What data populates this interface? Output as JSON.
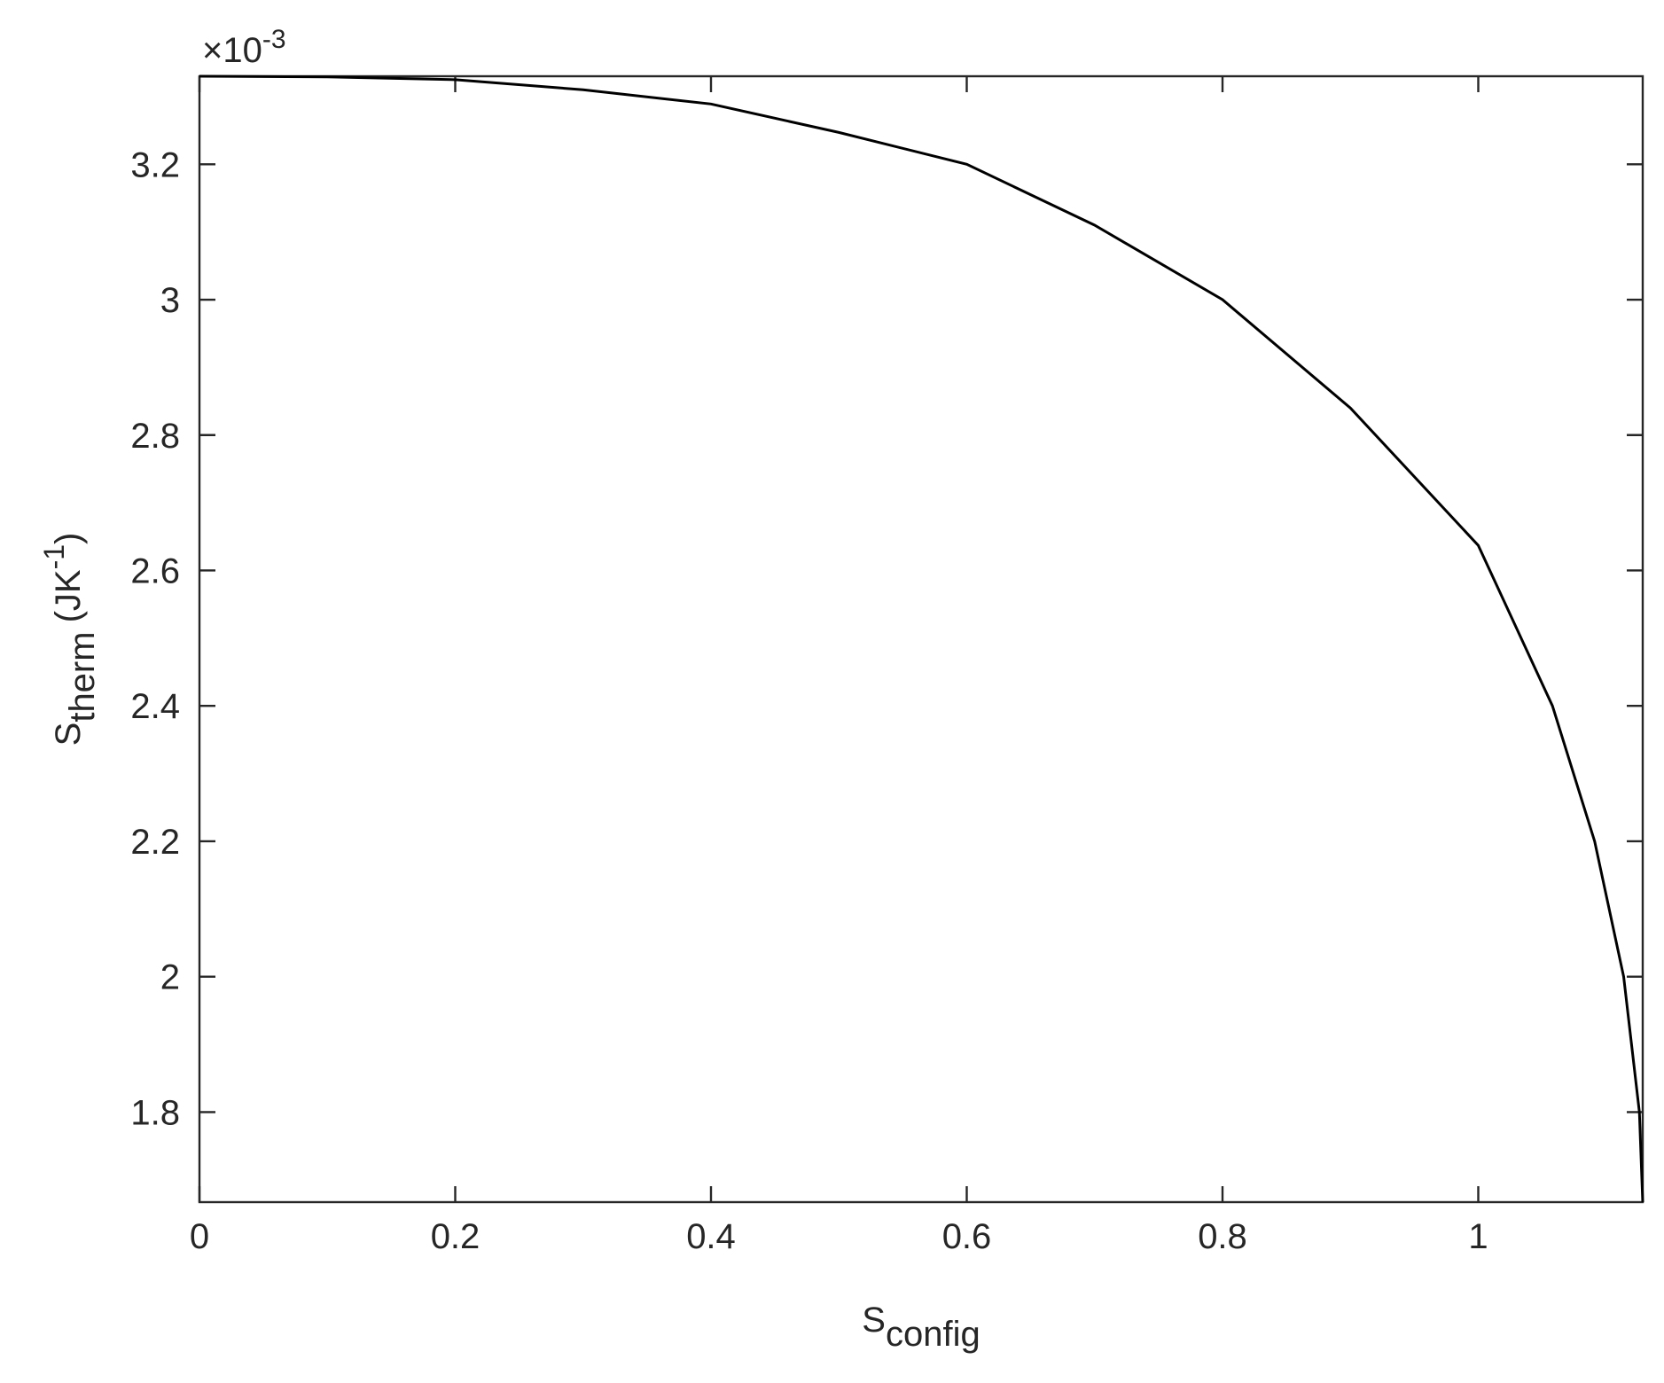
{
  "chart_data": {
    "type": "line",
    "x": [
      0,
      0.1,
      0.2,
      0.3,
      0.4,
      0.5,
      0.6,
      0.7,
      0.8,
      0.9,
      1.0,
      1.058,
      1.091,
      1.1137,
      1.126,
      1.1286
    ],
    "series": [
      {
        "color": "#000000",
        "values": [
          3.33,
          3.329,
          3.325,
          3.31,
          3.289,
          3.247,
          3.2,
          3.11,
          3.0,
          2.84,
          2.637,
          2.4,
          2.2,
          2.0,
          1.8,
          1.667
        ]
      }
    ],
    "xlim": [
      0,
      1.1286
    ],
    "ylim": [
      1.667,
      3.33
    ],
    "xticks": [
      0,
      0.2,
      0.4,
      0.6,
      0.8,
      1
    ],
    "yticks": [
      1.8,
      2,
      2.2,
      2.4,
      2.6,
      2.8,
      3,
      3.2
    ],
    "y_multiplier": {
      "base": "×10",
      "exponent": "-3"
    },
    "xlabel": {
      "main": "S",
      "sub": "config"
    },
    "ylabel": {
      "main": "S",
      "sub": "therm",
      "unit": "(JK",
      "unit_sup": "-1",
      "unit_close": ")"
    }
  }
}
